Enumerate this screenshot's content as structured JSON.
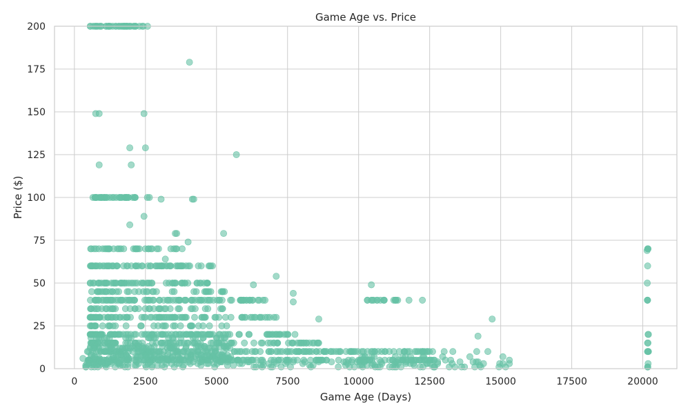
{
  "chart_data": {
    "type": "scatter",
    "title": "Game Age vs. Price",
    "xlabel": "Game Age (Days)",
    "ylabel": "Price ($)",
    "xlim": [
      -700,
      21200
    ],
    "ylim": [
      0,
      200
    ],
    "x_ticks": [
      0,
      2500,
      5000,
      7500,
      10000,
      12500,
      15000,
      17500,
      20000
    ],
    "x_tick_labels": [
      "0",
      "2500",
      "5000",
      "7500",
      "10000",
      "12500",
      "15000",
      "17500",
      "20000"
    ],
    "y_ticks": [
      0,
      25,
      50,
      75,
      100,
      125,
      150,
      175,
      200
    ],
    "y_tick_labels": [
      "0",
      "25",
      "50",
      "75",
      "100",
      "125",
      "150",
      "175",
      "200"
    ],
    "grid": true,
    "point_color": "#66c2a5",
    "point_opacity": 0.6,
    "clusters": [
      {
        "x_range": [
          550,
          2650
        ],
        "y_values": [
          199.99
        ],
        "count": 45
      },
      {
        "x_range": [
          650,
          2650
        ],
        "y_values": [
          99.99
        ],
        "count": 40
      },
      {
        "x_range": [
          550,
          3900
        ],
        "y_values": [
          69.99
        ],
        "count": 35
      },
      {
        "x_range": [
          550,
          4900
        ],
        "y_values": [
          59.99
        ],
        "count": 70
      },
      {
        "x_range": [
          550,
          4900
        ],
        "y_values": [
          49.99
        ],
        "count": 60
      },
      {
        "x_range": [
          550,
          6800
        ],
        "y_values": [
          39.99
        ],
        "count": 90
      },
      {
        "x_range": [
          550,
          7300
        ],
        "y_values": [
          29.99
        ],
        "count": 90
      },
      {
        "x_range": [
          550,
          7800
        ],
        "y_values": [
          19.99
        ],
        "count": 110
      },
      {
        "x_range": [
          550,
          9000
        ],
        "y_values": [
          14.99
        ],
        "count": 100
      },
      {
        "x_range": [
          450,
          12500
        ],
        "y_values": [
          9.99
        ],
        "count": 160
      },
      {
        "x_range": [
          450,
          13000
        ],
        "y_values": [
          4.99
        ],
        "count": 150
      },
      {
        "x_range": [
          400,
          14500
        ],
        "y_values": [
          0.99,
          1.99,
          2.99,
          3.99
        ],
        "count": 150
      },
      {
        "x_range": [
          550,
          5500
        ],
        "y_values": [
          5.99,
          6.99,
          7.99,
          11.99,
          12.99,
          17.99,
          24.99,
          34.99,
          44.99
        ],
        "count": 300
      },
      {
        "x_range": [
          10300,
          12300
        ],
        "y_values": [
          39.99
        ],
        "count": 18
      },
      {
        "x_range": [
          10000,
          15500
        ],
        "y_values": [
          0.99,
          2.99,
          4.99,
          6.99,
          9.99
        ],
        "count": 60
      },
      {
        "x_range": [
          20150,
          20200
        ],
        "y_values": [
          0.99,
          2.99,
          4.99,
          6.99,
          9.99,
          14.99,
          19.99,
          24.99,
          29.99,
          39.99,
          49.99,
          59.99,
          69.99
        ],
        "count": 20
      }
    ],
    "points": [
      {
        "x": 4050,
        "y": 179
      },
      {
        "x": 2450,
        "y": 149
      },
      {
        "x": 750,
        "y": 149
      },
      {
        "x": 870,
        "y": 149
      },
      {
        "x": 5700,
        "y": 125
      },
      {
        "x": 1950,
        "y": 129
      },
      {
        "x": 2500,
        "y": 129
      },
      {
        "x": 870,
        "y": 119
      },
      {
        "x": 2000,
        "y": 119
      },
      {
        "x": 3050,
        "y": 99
      },
      {
        "x": 4150,
        "y": 99
      },
      {
        "x": 4200,
        "y": 99
      },
      {
        "x": 2450,
        "y": 89
      },
      {
        "x": 3550,
        "y": 79
      },
      {
        "x": 3600,
        "y": 79
      },
      {
        "x": 5250,
        "y": 79
      },
      {
        "x": 1950,
        "y": 84
      },
      {
        "x": 4000,
        "y": 74
      },
      {
        "x": 3200,
        "y": 64
      },
      {
        "x": 7100,
        "y": 54
      },
      {
        "x": 10450,
        "y": 49
      },
      {
        "x": 6300,
        "y": 49
      },
      {
        "x": 7700,
        "y": 44
      },
      {
        "x": 7700,
        "y": 39
      },
      {
        "x": 8600,
        "y": 29
      },
      {
        "x": 14700,
        "y": 29
      },
      {
        "x": 14200,
        "y": 19
      },
      {
        "x": 300,
        "y": 6
      },
      {
        "x": 20150,
        "y": 69
      }
    ]
  }
}
